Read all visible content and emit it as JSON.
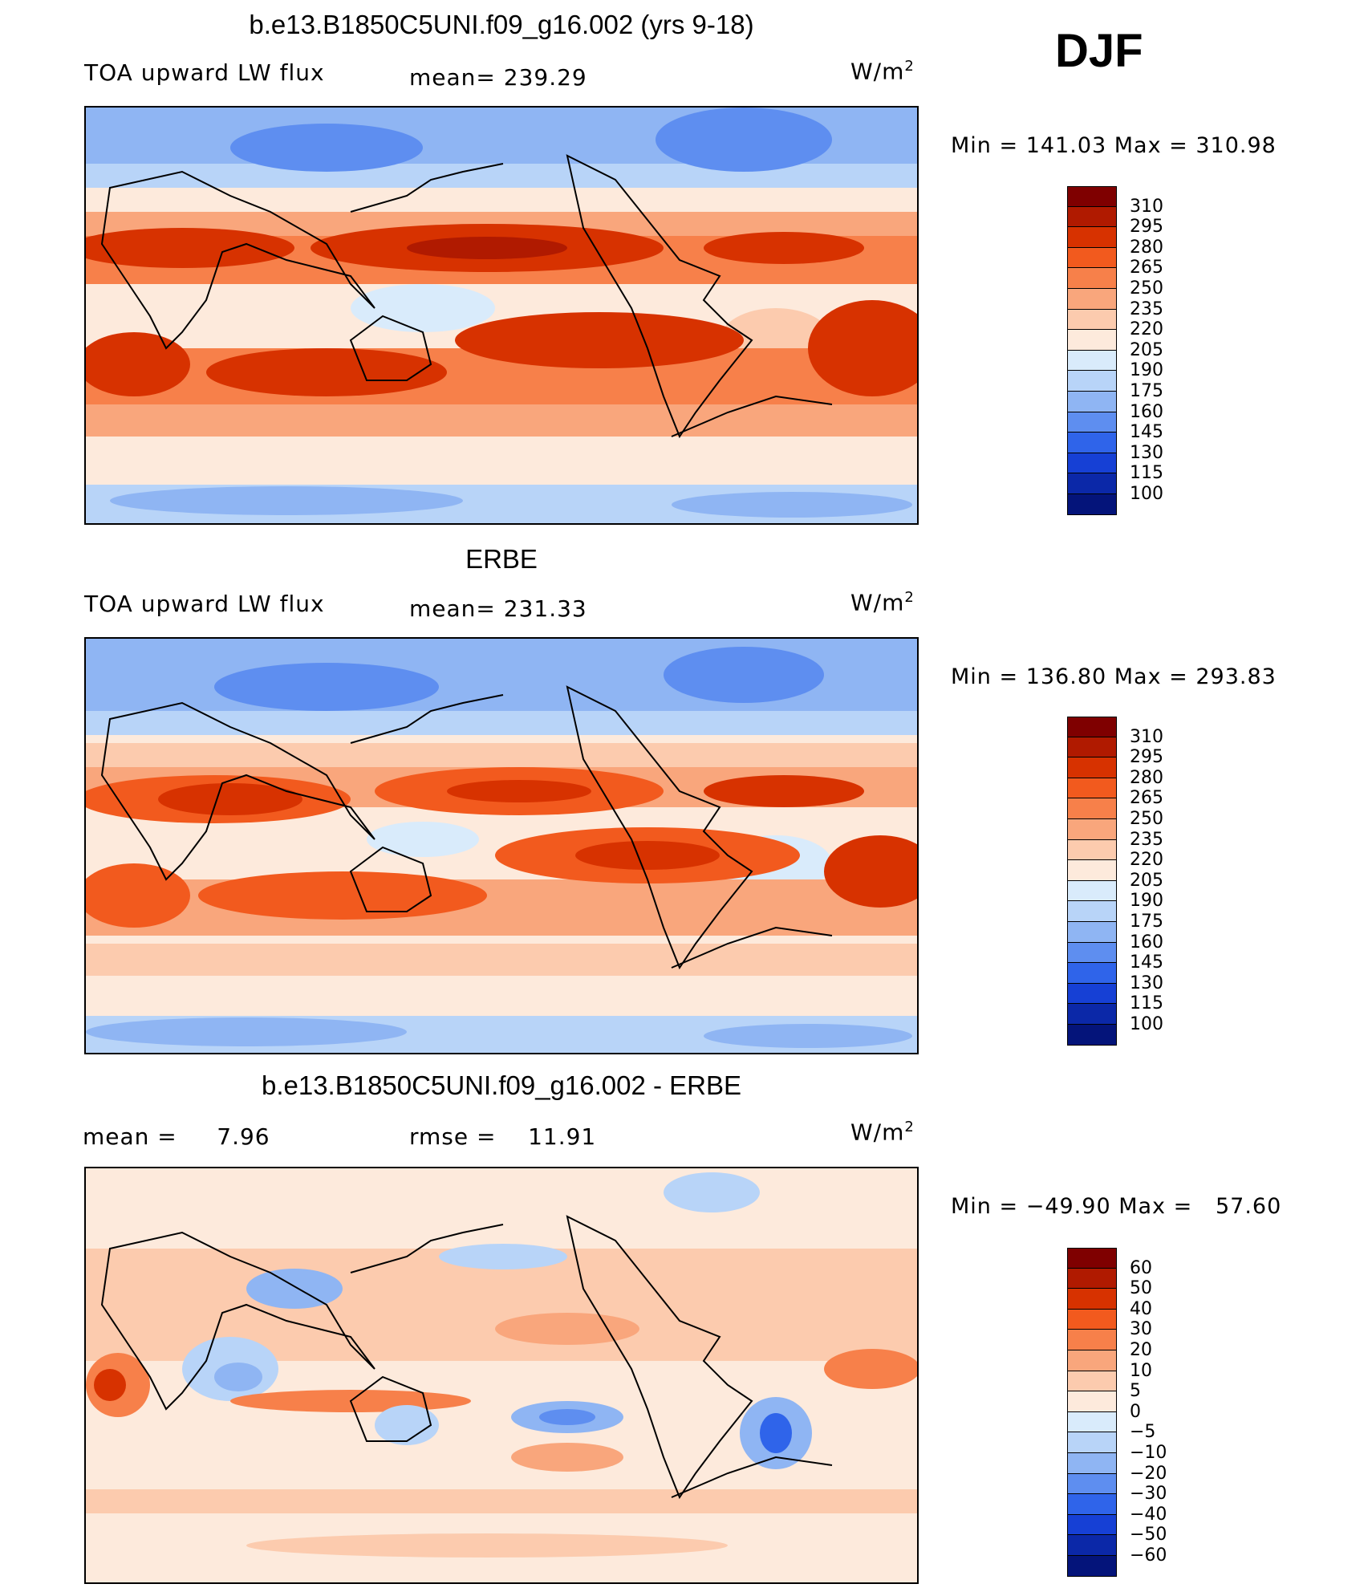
{
  "season": "DJF",
  "panels": [
    {
      "title": "b.e13.B1850C5UNI.f09_g16.002 (yrs 9-18)",
      "left_label": "TOA upward LW flux",
      "center_label": "mean= 239.29",
      "units": "W/m",
      "units_sup": "2",
      "minmax": "Min = 141.03 Max = 310.98"
    },
    {
      "title": "ERBE",
      "left_label": "TOA upward LW flux",
      "center_label": "mean= 231.33",
      "units": "W/m",
      "units_sup": "2",
      "minmax": "Min = 136.80 Max = 293.83"
    },
    {
      "title": "b.e13.B1850C5UNI.f09_g16.002 - ERBE",
      "left_label": "mean =     7.96",
      "center_label": "rmse =    11.91",
      "units": "W/m",
      "units_sup": "2",
      "minmax": "Min = −49.90 Max =   57.60"
    }
  ],
  "chart_data": [
    {
      "type": "heatmap",
      "title": "b.e13.B1850C5UNI.f09_g16.002 (yrs 9-18)",
      "variable": "TOA upward LW flux",
      "units": "W/m2",
      "mean": 239.29,
      "min": 141.03,
      "max": 310.98,
      "colorbar_levels": [
        "310",
        "295",
        "280",
        "265",
        "250",
        "235",
        "220",
        "205",
        "190",
        "175",
        "160",
        "145",
        "130",
        "115",
        "100"
      ]
    },
    {
      "type": "heatmap",
      "title": "ERBE",
      "variable": "TOA upward LW flux",
      "units": "W/m2",
      "mean": 231.33,
      "min": 136.8,
      "max": 293.83,
      "colorbar_levels": [
        "310",
        "295",
        "280",
        "265",
        "250",
        "235",
        "220",
        "205",
        "190",
        "175",
        "160",
        "145",
        "130",
        "115",
        "100"
      ]
    },
    {
      "type": "heatmap",
      "title": "b.e13.B1850C5UNI.f09_g16.002 - ERBE",
      "units": "W/m2",
      "mean": 7.96,
      "rmse": 11.91,
      "min": -49.9,
      "max": 57.6,
      "colorbar_levels": [
        "60",
        "50",
        "40",
        "30",
        "20",
        "10",
        "5",
        "0",
        "−5",
        "−10",
        "−20",
        "−30",
        "−40",
        "−50",
        "−60"
      ]
    }
  ],
  "colors": {
    "palette_warm_to_cold": [
      "#7f0000",
      "#b01a00",
      "#d73200",
      "#f25a1e",
      "#f7804a",
      "#f9a67c",
      "#fccbae",
      "#fdeadc",
      "#d9ebfb",
      "#b8d4f8",
      "#8fb5f3",
      "#5e8ef0",
      "#2f64ea",
      "#1640d5",
      "#0b28a8",
      "#04147a"
    ]
  }
}
